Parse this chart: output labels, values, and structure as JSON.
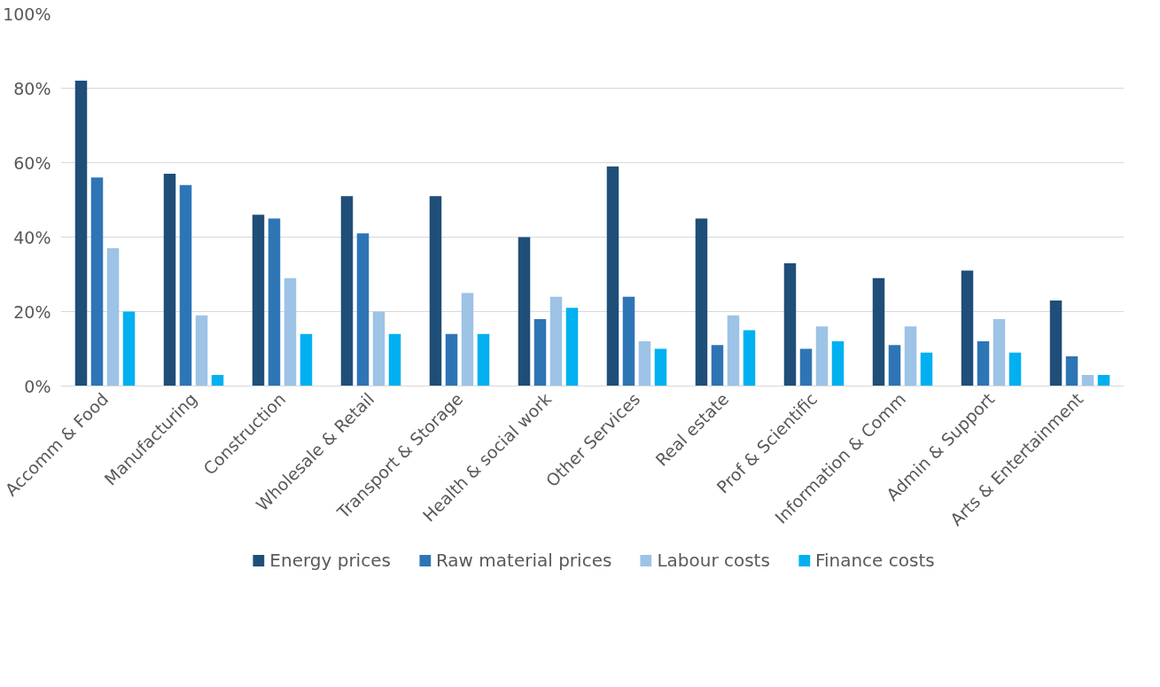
{
  "chart_data": {
    "type": "bar",
    "categories": [
      "Accomm & Food",
      "Manufacturing",
      "Construction",
      "Wholesale & Retail",
      "Transport & Storage",
      "Health & social work",
      "Other Services",
      "Real estate",
      "Prof & Scientific",
      "Information & Comm",
      "Admin & Support",
      "Arts & Entertainment"
    ],
    "series": [
      {
        "name": "Energy prices",
        "color": "#1f4e79",
        "values": [
          82,
          57,
          46,
          51,
          51,
          40,
          59,
          45,
          33,
          29,
          31,
          23
        ]
      },
      {
        "name": "Raw material prices",
        "color": "#2e75b6",
        "values": [
          56,
          54,
          45,
          41,
          14,
          18,
          24,
          11,
          10,
          11,
          12,
          8
        ]
      },
      {
        "name": "Labour costs",
        "color": "#9dc3e6",
        "values": [
          37,
          19,
          29,
          20,
          25,
          24,
          12,
          19,
          16,
          16,
          18,
          3
        ]
      },
      {
        "name": "Finance costs",
        "color": "#00b0f0",
        "values": [
          20,
          3,
          14,
          14,
          14,
          21,
          10,
          15,
          12,
          9,
          9,
          3
        ]
      }
    ],
    "ylim": [
      0,
      100
    ],
    "yticks": [
      {
        "value": 0,
        "label": "0%"
      },
      {
        "value": 20,
        "label": "20%"
      },
      {
        "value": 40,
        "label": "40%"
      },
      {
        "value": 60,
        "label": "60%"
      },
      {
        "value": 80,
        "label": "80%"
      },
      {
        "value": 100,
        "label": "100%"
      }
    ],
    "grid": "y",
    "legend": "bottom"
  }
}
